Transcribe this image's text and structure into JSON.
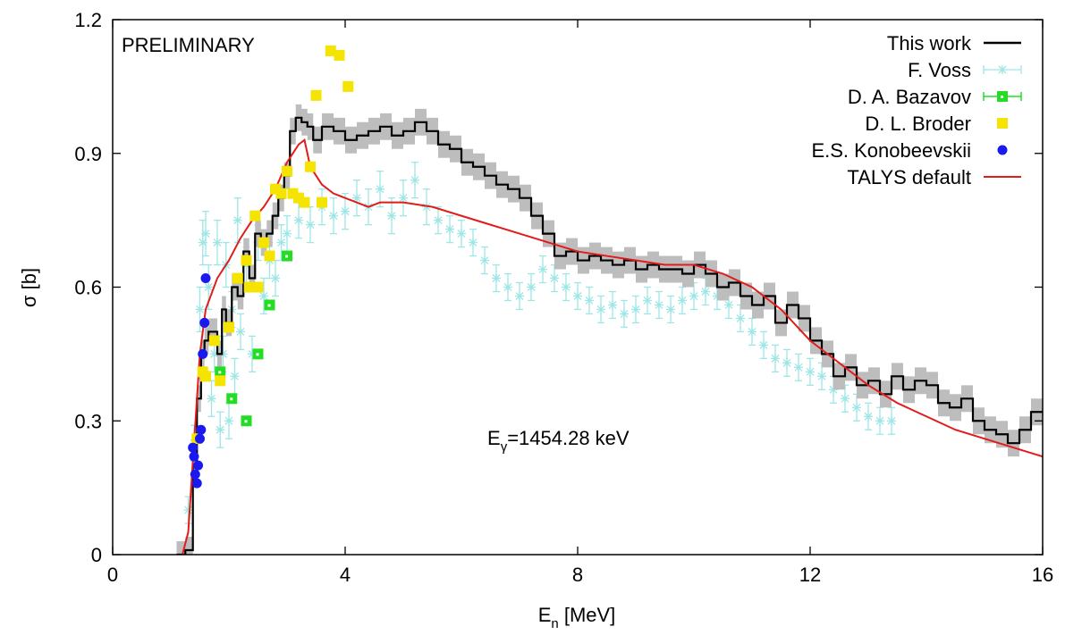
{
  "chart_data": {
    "type": "line",
    "annotations": {
      "preliminary": "PRELIMINARY",
      "energy_label_prefix": "E",
      "energy_label_sub": "γ",
      "energy_label_value": "=1454.28 keV"
    },
    "xlabel_main": "E",
    "xlabel_sub": "n",
    "xlabel_unit": " [MeV]",
    "ylabel": "σ [b]",
    "xlim": [
      0,
      16
    ],
    "ylim": [
      0,
      1.2
    ],
    "x_ticks": [
      {
        "value": 0,
        "label": "0"
      },
      {
        "value": 4,
        "label": "4"
      },
      {
        "value": 8,
        "label": "8"
      },
      {
        "value": 12,
        "label": "12"
      },
      {
        "value": 16,
        "label": "16"
      }
    ],
    "y_ticks": [
      {
        "value": 0,
        "label": "0"
      },
      {
        "value": 0.3,
        "label": "0.3"
      },
      {
        "value": 0.6,
        "label": "0.6"
      },
      {
        "value": 0.9,
        "label": "0.9"
      },
      {
        "value": 1.2,
        "label": "1.2"
      }
    ],
    "legend_position": "top-right",
    "series": [
      {
        "name": "This work",
        "kind": "step-with-band",
        "color": "#000000",
        "band_color": "#bdbdbd",
        "x": [
          1.1,
          1.25,
          1.38,
          1.45,
          1.52,
          1.58,
          1.65,
          1.72,
          1.8,
          1.88,
          1.95,
          2.05,
          2.15,
          2.25,
          2.35,
          2.45,
          2.55,
          2.65,
          2.75,
          2.85,
          2.95,
          3.05,
          3.15,
          3.25,
          3.35,
          3.45,
          3.6,
          3.8,
          4.0,
          4.2,
          4.4,
          4.6,
          4.8,
          5.0,
          5.2,
          5.4,
          5.6,
          5.8,
          6.0,
          6.2,
          6.4,
          6.6,
          6.8,
          7.0,
          7.2,
          7.4,
          7.6,
          7.8,
          8.0,
          8.2,
          8.4,
          8.6,
          8.8,
          9.0,
          9.2,
          9.4,
          9.6,
          9.8,
          10.0,
          10.2,
          10.4,
          10.6,
          10.8,
          11.0,
          11.2,
          11.4,
          11.6,
          11.8,
          12.0,
          12.2,
          12.4,
          12.6,
          12.8,
          13.0,
          13.2,
          13.4,
          13.6,
          13.8,
          14.0,
          14.2,
          14.4,
          14.6,
          14.8,
          15.0,
          15.2,
          15.4,
          15.6,
          15.8
        ],
        "y": [
          0.0,
          0.01,
          0.2,
          0.35,
          0.45,
          0.48,
          0.5,
          0.5,
          0.45,
          0.55,
          0.52,
          0.6,
          0.58,
          0.68,
          0.62,
          0.72,
          0.7,
          0.72,
          0.76,
          0.8,
          0.85,
          0.95,
          0.98,
          0.97,
          0.96,
          0.93,
          0.96,
          0.95,
          0.93,
          0.94,
          0.95,
          0.96,
          0.94,
          0.95,
          0.97,
          0.95,
          0.92,
          0.91,
          0.88,
          0.87,
          0.85,
          0.83,
          0.82,
          0.8,
          0.76,
          0.72,
          0.67,
          0.68,
          0.66,
          0.67,
          0.66,
          0.65,
          0.66,
          0.64,
          0.65,
          0.64,
          0.64,
          0.63,
          0.65,
          0.63,
          0.6,
          0.61,
          0.58,
          0.56,
          0.58,
          0.52,
          0.56,
          0.53,
          0.48,
          0.45,
          0.4,
          0.42,
          0.38,
          0.39,
          0.36,
          0.4,
          0.37,
          0.39,
          0.38,
          0.34,
          0.33,
          0.35,
          0.3,
          0.28,
          0.27,
          0.25,
          0.28,
          0.32
        ],
        "band_halfwidth": 0.03
      },
      {
        "name": "F. Voss",
        "kind": "scatter-errorbars",
        "color": "#9ee6e6",
        "x": [
          1.3,
          1.4,
          1.5,
          1.55,
          1.6,
          1.65,
          1.7,
          1.75,
          1.8,
          1.85,
          1.9,
          1.95,
          2.0,
          2.05,
          2.1,
          2.15,
          2.2,
          2.3,
          2.4,
          2.5,
          2.6,
          2.7,
          2.8,
          2.9,
          3.0,
          3.2,
          3.4,
          3.6,
          3.8,
          4.0,
          4.2,
          4.4,
          4.6,
          4.8,
          5.0,
          5.2,
          5.4,
          5.6,
          5.8,
          6.0,
          6.2,
          6.4,
          6.6,
          6.8,
          7.0,
          7.2,
          7.4,
          7.6,
          7.8,
          8.0,
          8.2,
          8.4,
          8.6,
          8.8,
          9.0,
          9.2,
          9.4,
          9.6,
          9.8,
          10.0,
          10.2,
          10.4,
          10.6,
          10.8,
          11.0,
          11.2,
          11.4,
          11.6,
          11.8,
          12.0,
          12.2,
          12.4,
          12.6,
          12.8,
          13.0,
          13.2,
          13.4
        ],
        "y": [
          0.1,
          0.25,
          0.55,
          0.7,
          0.72,
          0.6,
          0.35,
          0.45,
          0.7,
          0.28,
          0.45,
          0.65,
          0.3,
          0.55,
          0.4,
          0.75,
          0.5,
          0.65,
          0.45,
          0.7,
          0.58,
          0.66,
          0.62,
          0.7,
          0.72,
          0.75,
          0.74,
          0.78,
          0.76,
          0.77,
          0.8,
          0.78,
          0.82,
          0.76,
          0.8,
          0.84,
          0.78,
          0.75,
          0.73,
          0.72,
          0.7,
          0.66,
          0.62,
          0.6,
          0.58,
          0.6,
          0.64,
          0.62,
          0.6,
          0.58,
          0.57,
          0.55,
          0.56,
          0.54,
          0.55,
          0.57,
          0.56,
          0.55,
          0.57,
          0.58,
          0.59,
          0.58,
          0.56,
          0.53,
          0.5,
          0.47,
          0.44,
          0.43,
          0.42,
          0.41,
          0.4,
          0.37,
          0.35,
          0.33,
          0.31,
          0.3,
          0.3
        ],
        "errors": [
          0.03,
          0.04,
          0.05,
          0.05,
          0.05,
          0.05,
          0.04,
          0.04,
          0.05,
          0.04,
          0.04,
          0.05,
          0.04,
          0.04,
          0.04,
          0.05,
          0.04,
          0.04,
          0.04,
          0.04,
          0.04,
          0.04,
          0.04,
          0.04,
          0.04,
          0.04,
          0.04,
          0.04,
          0.04,
          0.04,
          0.04,
          0.04,
          0.04,
          0.04,
          0.04,
          0.04,
          0.04,
          0.03,
          0.03,
          0.03,
          0.03,
          0.03,
          0.03,
          0.03,
          0.03,
          0.03,
          0.03,
          0.03,
          0.03,
          0.03,
          0.03,
          0.03,
          0.03,
          0.03,
          0.03,
          0.03,
          0.03,
          0.03,
          0.03,
          0.03,
          0.03,
          0.03,
          0.03,
          0.03,
          0.03,
          0.03,
          0.03,
          0.03,
          0.03,
          0.03,
          0.03,
          0.03,
          0.03,
          0.03,
          0.03,
          0.03,
          0.03
        ]
      },
      {
        "name": "D. A. Bazavov",
        "kind": "scatter-square-errorbars",
        "color": "#22dd22",
        "x": [
          1.85,
          2.05,
          2.3,
          2.5,
          2.7,
          3.0
        ],
        "y": [
          0.41,
          0.35,
          0.3,
          0.45,
          0.56,
          0.67
        ]
      },
      {
        "name": "D. L. Broder",
        "kind": "scatter-square",
        "color": "#f5e400",
        "x": [
          1.45,
          1.6,
          1.75,
          1.85,
          2.0,
          2.15,
          2.3,
          2.45,
          2.6,
          2.7,
          2.8,
          2.9,
          3.0,
          3.1,
          3.2,
          3.3,
          3.4,
          3.5,
          3.6,
          3.75,
          3.9,
          4.05,
          1.55,
          2.35,
          2.5
        ],
        "y": [
          0.26,
          0.4,
          0.48,
          0.39,
          0.51,
          0.62,
          0.66,
          0.76,
          0.7,
          0.67,
          0.82,
          0.81,
          0.86,
          0.81,
          0.8,
          0.79,
          0.87,
          1.03,
          0.79,
          1.13,
          1.12,
          1.05,
          0.41,
          0.6,
          0.6
        ]
      },
      {
        "name": "E.S. Konobeevskii",
        "kind": "scatter-circle",
        "color": "#1a1aee",
        "x": [
          1.38,
          1.4,
          1.42,
          1.45,
          1.47,
          1.5,
          1.52,
          1.55,
          1.58,
          1.6
        ],
        "y": [
          0.24,
          0.22,
          0.18,
          0.16,
          0.2,
          0.26,
          0.28,
          0.45,
          0.52,
          0.62
        ]
      },
      {
        "name": "TALYS default",
        "kind": "line",
        "color": "#e21b1b",
        "x": [
          1.2,
          1.3,
          1.4,
          1.5,
          1.6,
          1.8,
          2.0,
          2.2,
          2.4,
          2.6,
          2.8,
          3.0,
          3.2,
          3.3,
          3.4,
          3.6,
          3.8,
          4.0,
          4.2,
          4.4,
          4.6,
          5.0,
          5.5,
          6.0,
          6.5,
          7.0,
          7.5,
          8.0,
          8.5,
          9.0,
          9.5,
          10.0,
          10.5,
          11.0,
          11.5,
          12.0,
          12.5,
          13.0,
          13.5,
          14.0,
          14.5,
          15.0,
          15.5,
          16.0
        ],
        "y": [
          0.0,
          0.05,
          0.25,
          0.45,
          0.55,
          0.62,
          0.66,
          0.71,
          0.75,
          0.78,
          0.82,
          0.88,
          0.92,
          0.93,
          0.87,
          0.83,
          0.81,
          0.8,
          0.79,
          0.78,
          0.79,
          0.79,
          0.78,
          0.76,
          0.74,
          0.72,
          0.7,
          0.68,
          0.67,
          0.66,
          0.65,
          0.65,
          0.63,
          0.6,
          0.55,
          0.48,
          0.43,
          0.38,
          0.34,
          0.31,
          0.28,
          0.26,
          0.24,
          0.22
        ]
      }
    ]
  }
}
